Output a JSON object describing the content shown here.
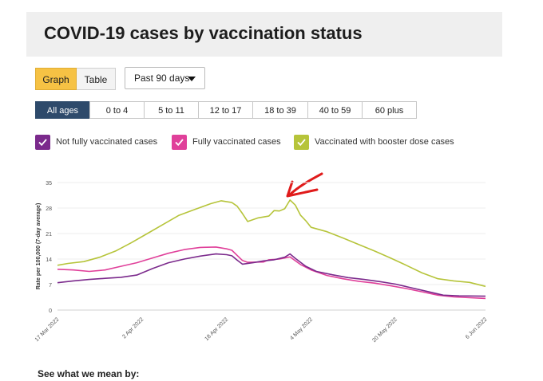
{
  "header": {
    "title": "COVID-19 cases by vaccination status"
  },
  "view_toggle": {
    "graph": "Graph",
    "table": "Table"
  },
  "range_select": {
    "value": "Past 90 days"
  },
  "age_tabs": [
    {
      "label": "All ages",
      "active": true
    },
    {
      "label": "0 to 4",
      "active": false
    },
    {
      "label": "5 to 11",
      "active": false
    },
    {
      "label": "12 to 17",
      "active": false
    },
    {
      "label": "18 to 39",
      "active": false
    },
    {
      "label": "40 to 59",
      "active": false
    },
    {
      "label": "60 plus",
      "active": false
    }
  ],
  "legend": [
    {
      "label": "Not fully vaccinated cases",
      "color": "#7b2a8c"
    },
    {
      "label": "Fully vaccinated cases",
      "color": "#e0409a"
    },
    {
      "label": "Vaccinated with booster dose cases",
      "color": "#b6c43a"
    }
  ],
  "footer": {
    "see_what": "See what we mean by:"
  },
  "chart_data": {
    "type": "line",
    "ylabel": "Rate per 100,000 (7-day average)",
    "xlabel": "",
    "ylim": [
      0,
      35
    ],
    "yticks": [
      0,
      7,
      14,
      21,
      28,
      35
    ],
    "xlim": [
      "2022-03-17",
      "2022-06-06"
    ],
    "xticks": [
      {
        "date": "2022-03-17",
        "label": "17 Mar 2022"
      },
      {
        "date": "2022-04-02",
        "label": "2 Apr 2022"
      },
      {
        "date": "2022-04-18",
        "label": "18 Apr 2022"
      },
      {
        "date": "2022-05-04",
        "label": "4 May 2022"
      },
      {
        "date": "2022-05-20",
        "label": "20 May 2022"
      },
      {
        "date": "2022-06-06",
        "label": "6 Jun 2022"
      }
    ],
    "grid": true,
    "series": [
      {
        "name": "Vaccinated with booster dose cases",
        "color": "#b6c43a",
        "points": [
          [
            "2022-03-17",
            12.3
          ],
          [
            "2022-03-19",
            12.8
          ],
          [
            "2022-03-22",
            13.3
          ],
          [
            "2022-03-25",
            14.5
          ],
          [
            "2022-03-28",
            16.2
          ],
          [
            "2022-03-31",
            18.5
          ],
          [
            "2022-04-03",
            21.0
          ],
          [
            "2022-04-06",
            23.5
          ],
          [
            "2022-04-09",
            26.0
          ],
          [
            "2022-04-12",
            27.6
          ],
          [
            "2022-04-15",
            29.2
          ],
          [
            "2022-04-17",
            30.0
          ],
          [
            "2022-04-19",
            29.5
          ],
          [
            "2022-04-20",
            28.5
          ],
          [
            "2022-04-21",
            26.5
          ],
          [
            "2022-04-22",
            24.3
          ],
          [
            "2022-04-24",
            25.3
          ],
          [
            "2022-04-26",
            25.8
          ],
          [
            "2022-04-27",
            27.3
          ],
          [
            "2022-04-28",
            27.2
          ],
          [
            "2022-04-29",
            27.8
          ],
          [
            "2022-04-30",
            30.2
          ],
          [
            "2022-05-01",
            28.8
          ],
          [
            "2022-05-02",
            26.0
          ],
          [
            "2022-05-03",
            24.5
          ],
          [
            "2022-05-04",
            22.7
          ],
          [
            "2022-05-07",
            21.5
          ],
          [
            "2022-05-10",
            19.8
          ],
          [
            "2022-05-13",
            18.0
          ],
          [
            "2022-05-16",
            16.2
          ],
          [
            "2022-05-19",
            14.3
          ],
          [
            "2022-05-22",
            12.3
          ],
          [
            "2022-05-25",
            10.2
          ],
          [
            "2022-05-28",
            8.6
          ],
          [
            "2022-05-31",
            8.0
          ],
          [
            "2022-06-03",
            7.6
          ],
          [
            "2022-06-06",
            6.5
          ]
        ]
      },
      {
        "name": "Fully vaccinated cases",
        "color": "#e0409a",
        "points": [
          [
            "2022-03-17",
            11.2
          ],
          [
            "2022-03-20",
            11.0
          ],
          [
            "2022-03-23",
            10.6
          ],
          [
            "2022-03-26",
            11.0
          ],
          [
            "2022-03-29",
            12.0
          ],
          [
            "2022-04-01",
            13.0
          ],
          [
            "2022-04-04",
            14.3
          ],
          [
            "2022-04-07",
            15.6
          ],
          [
            "2022-04-10",
            16.6
          ],
          [
            "2022-04-13",
            17.2
          ],
          [
            "2022-04-16",
            17.3
          ],
          [
            "2022-04-18",
            16.8
          ],
          [
            "2022-04-19",
            16.4
          ],
          [
            "2022-04-20",
            15.0
          ],
          [
            "2022-04-21",
            13.6
          ],
          [
            "2022-04-22",
            13.1
          ],
          [
            "2022-04-25",
            13.2
          ],
          [
            "2022-04-26",
            13.8
          ],
          [
            "2022-04-28",
            14.0
          ],
          [
            "2022-04-30",
            14.6
          ],
          [
            "2022-05-02",
            12.5
          ],
          [
            "2022-05-04",
            11.0
          ],
          [
            "2022-05-07",
            9.5
          ],
          [
            "2022-05-10",
            8.6
          ],
          [
            "2022-05-13",
            7.9
          ],
          [
            "2022-05-16",
            7.4
          ],
          [
            "2022-05-19",
            6.7
          ],
          [
            "2022-05-22",
            5.9
          ],
          [
            "2022-05-25",
            5.0
          ],
          [
            "2022-05-28",
            4.1
          ],
          [
            "2022-05-31",
            3.6
          ],
          [
            "2022-06-03",
            3.4
          ],
          [
            "2022-06-06",
            3.2
          ]
        ]
      },
      {
        "name": "Not fully vaccinated cases",
        "color": "#7b2a8c",
        "points": [
          [
            "2022-03-17",
            7.5
          ],
          [
            "2022-03-20",
            8.0
          ],
          [
            "2022-03-23",
            8.4
          ],
          [
            "2022-03-26",
            8.7
          ],
          [
            "2022-03-29",
            9.0
          ],
          [
            "2022-04-01",
            9.6
          ],
          [
            "2022-04-04",
            11.4
          ],
          [
            "2022-04-07",
            13.0
          ],
          [
            "2022-04-10",
            14.0
          ],
          [
            "2022-04-13",
            14.8
          ],
          [
            "2022-04-16",
            15.4
          ],
          [
            "2022-04-18",
            15.2
          ],
          [
            "2022-04-19",
            14.9
          ],
          [
            "2022-04-20",
            13.7
          ],
          [
            "2022-04-21",
            12.6
          ],
          [
            "2022-04-23",
            13.0
          ],
          [
            "2022-04-25",
            13.5
          ],
          [
            "2022-04-27",
            13.8
          ],
          [
            "2022-04-29",
            14.5
          ],
          [
            "2022-04-30",
            15.4
          ],
          [
            "2022-05-01",
            14.2
          ],
          [
            "2022-05-03",
            12.0
          ],
          [
            "2022-05-05",
            10.6
          ],
          [
            "2022-05-08",
            9.7
          ],
          [
            "2022-05-11",
            8.9
          ],
          [
            "2022-05-14",
            8.4
          ],
          [
            "2022-05-17",
            7.8
          ],
          [
            "2022-05-20",
            7.1
          ],
          [
            "2022-05-23",
            6.1
          ],
          [
            "2022-05-26",
            5.1
          ],
          [
            "2022-05-29",
            4.1
          ],
          [
            "2022-06-01",
            3.9
          ],
          [
            "2022-06-06",
            3.8
          ]
        ]
      }
    ]
  }
}
